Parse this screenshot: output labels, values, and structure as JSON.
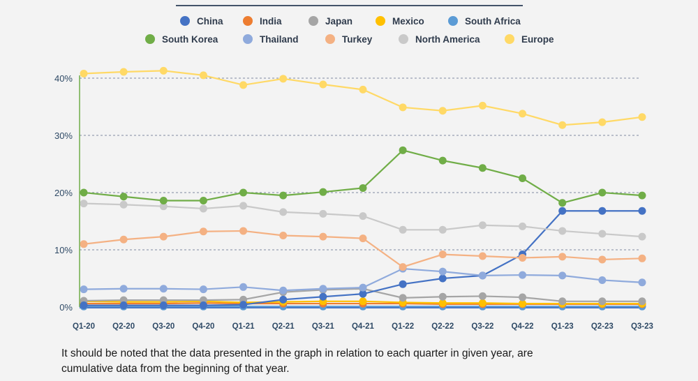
{
  "chart_data": {
    "type": "line",
    "x": [
      "Q1-20",
      "Q2-20",
      "Q3-20",
      "Q4-20",
      "Q1-21",
      "Q2-21",
      "Q3-21",
      "Q4-21",
      "Q1-22",
      "Q2-22",
      "Q3-22",
      "Q4-22",
      "Q1-23",
      "Q2-23",
      "Q3-23"
    ],
    "y_ticks": [
      "0%",
      "10%",
      "20%",
      "30%",
      "40%"
    ],
    "ylim": [
      0,
      42
    ],
    "grid": "horizontal dashed",
    "legend_position": "top",
    "series": [
      {
        "name": "China",
        "color": "#4472c4",
        "values": [
          0.3,
          0.3,
          0.3,
          0.3,
          0.4,
          1.3,
          1.8,
          2.3,
          4.0,
          5.0,
          5.5,
          9.2,
          16.8,
          16.8,
          16.8
        ]
      },
      {
        "name": "India",
        "color": "#ed7d31",
        "values": [
          0.6,
          0.6,
          0.6,
          0.7,
          0.6,
          0.6,
          0.6,
          0.6,
          0.6,
          0.5,
          0.5,
          0.5,
          0.5,
          0.5,
          0.5
        ]
      },
      {
        "name": "Japan",
        "color": "#a5a5a5",
        "values": [
          1.1,
          1.2,
          1.2,
          1.2,
          1.3,
          2.6,
          3.0,
          3.2,
          1.6,
          1.8,
          1.9,
          1.7,
          1.0,
          1.0,
          1.0
        ]
      },
      {
        "name": "Mexico",
        "color": "#ffc000",
        "values": [
          1.0,
          0.9,
          0.9,
          1.0,
          0.8,
          0.9,
          1.0,
          1.0,
          0.8,
          0.7,
          0.7,
          0.6,
          0.6,
          0.6,
          0.6
        ]
      },
      {
        "name": "South Africa",
        "color": "#5b9bd5",
        "values": [
          0.1,
          0.1,
          0.1,
          0.1,
          0.1,
          0.1,
          0.1,
          0.1,
          0.1,
          0.1,
          0.1,
          0.1,
          0.1,
          0.1,
          0.1
        ]
      },
      {
        "name": "South Korea",
        "color": "#70ad47",
        "values": [
          20.0,
          19.3,
          18.6,
          18.6,
          20.0,
          19.5,
          20.1,
          20.8,
          27.4,
          25.6,
          24.3,
          22.5,
          18.2,
          20.0,
          19.5
        ]
      },
      {
        "name": "Thailand",
        "color": "#8faadc",
        "values": [
          3.1,
          3.2,
          3.2,
          3.1,
          3.5,
          2.9,
          3.2,
          3.4,
          6.7,
          6.2,
          5.5,
          5.6,
          5.5,
          4.7,
          4.3
        ]
      },
      {
        "name": "Turkey",
        "color": "#f4b183",
        "values": [
          11.0,
          11.8,
          12.3,
          13.2,
          13.3,
          12.5,
          12.3,
          12.0,
          7.0,
          9.2,
          8.9,
          8.6,
          8.8,
          8.3,
          8.5
        ]
      },
      {
        "name": "North America",
        "color": "#c9c9c9",
        "values": [
          18.1,
          17.9,
          17.6,
          17.2,
          17.7,
          16.6,
          16.3,
          15.9,
          13.5,
          13.5,
          14.3,
          14.1,
          13.3,
          12.8,
          12.3
        ]
      },
      {
        "name": "Europe",
        "color": "#ffd966",
        "values": [
          40.8,
          41.1,
          41.3,
          40.5,
          38.8,
          39.9,
          38.9,
          38.0,
          34.9,
          34.3,
          35.2,
          33.8,
          31.8,
          32.3,
          33.2
        ]
      }
    ]
  },
  "note": {
    "line1": "It should be noted that the data presented in the graph in relation to each quarter in given year, are",
    "line2": "cumulative data from the beginning of that year."
  }
}
